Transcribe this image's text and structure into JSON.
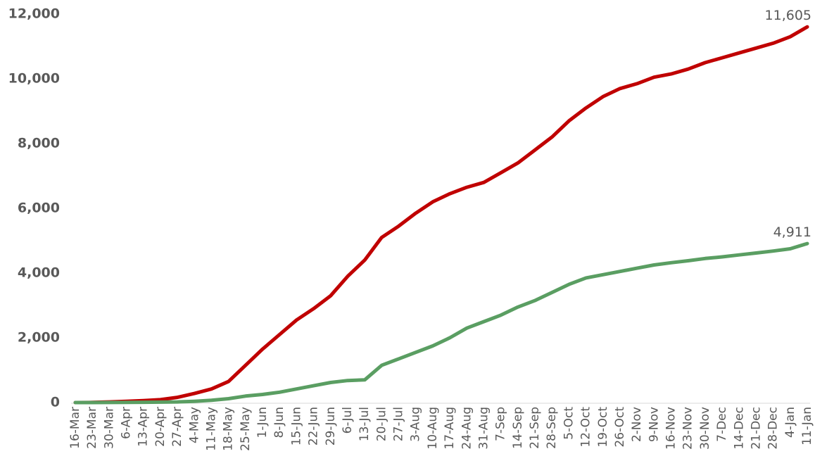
{
  "chart_data": {
    "type": "line",
    "categories": [
      "16-Mar",
      "23-Mar",
      "30-Mar",
      "6-Apr",
      "13-Apr",
      "20-Apr",
      "27-Apr",
      "4-May",
      "11-May",
      "18-May",
      "25-May",
      "1-Jun",
      "8-Jun",
      "15-Jun",
      "22-Jun",
      "29-Jun",
      "6-Jul",
      "13-Jul",
      "20-Jul",
      "27-Jul",
      "3-Aug",
      "10-Aug",
      "17-Aug",
      "24-Aug",
      "31-Aug",
      "7-Sep",
      "14-Sep",
      "21-Sep",
      "28-Sep",
      "5-Oct",
      "12-Oct",
      "19-Oct",
      "26-Oct",
      "2-Nov",
      "9-Nov",
      "16-Nov",
      "23-Nov",
      "30-Nov",
      "7-Dec",
      "14-Dec",
      "21-Dec",
      "28-Dec",
      "4-Jan",
      "11-Jan"
    ],
    "series": [
      {
        "color": "#c00000",
        "values": [
          0,
          5,
          20,
          40,
          60,
          90,
          160,
          280,
          420,
          650,
          1150,
          1650,
          2100,
          2550,
          2900,
          3300,
          3900,
          4400,
          5100,
          5450,
          5850,
          6200,
          6450,
          6650,
          6800,
          7100,
          7400,
          7800,
          8200,
          8700,
          9100,
          9450,
          9700,
          9850,
          10050,
          10150,
          10300,
          10500,
          10650,
          10800,
          10950,
          11100,
          11300,
          11605
        ],
        "value_labels": [
          null,
          null,
          null,
          null,
          null,
          null,
          null,
          null,
          null,
          null,
          null,
          null,
          null,
          null,
          null,
          null,
          null,
          null,
          null,
          null,
          null,
          null,
          null,
          null,
          null,
          null,
          null,
          null,
          null,
          null,
          null,
          null,
          null,
          null,
          null,
          null,
          null,
          null,
          null,
          null,
          null,
          null,
          null,
          "11,605"
        ]
      },
      {
        "color": "#5a9e62",
        "values": [
          0,
          0,
          2,
          5,
          8,
          12,
          20,
          40,
          70,
          120,
          200,
          250,
          320,
          420,
          520,
          620,
          680,
          700,
          1150,
          1350,
          1550,
          1750,
          2000,
          2300,
          2500,
          2700,
          2950,
          3150,
          3400,
          3650,
          3850,
          3950,
          4050,
          4150,
          4250,
          4320,
          4380,
          4450,
          4500,
          4560,
          4620,
          4680,
          4750,
          4911
        ],
        "value_labels": [
          null,
          null,
          null,
          null,
          null,
          null,
          null,
          null,
          null,
          null,
          null,
          null,
          null,
          null,
          null,
          null,
          null,
          null,
          null,
          null,
          null,
          null,
          null,
          null,
          null,
          null,
          null,
          null,
          null,
          null,
          null,
          null,
          null,
          null,
          null,
          null,
          null,
          null,
          null,
          null,
          null,
          null,
          null,
          "4,911"
        ]
      }
    ],
    "ylim": [
      0,
      12000
    ],
    "yticks": [
      0,
      {
        "value": 2000,
        "label": "2,000"
      },
      {
        "value": 4000,
        "label": "4,000"
      },
      {
        "value": 6000,
        "label": "6,000"
      },
      {
        "value": 8000,
        "label": "8,000"
      },
      {
        "value": 10000,
        "label": "10,000"
      },
      {
        "value": 12000,
        "label": "12,000"
      }
    ],
    "grid": false
  }
}
